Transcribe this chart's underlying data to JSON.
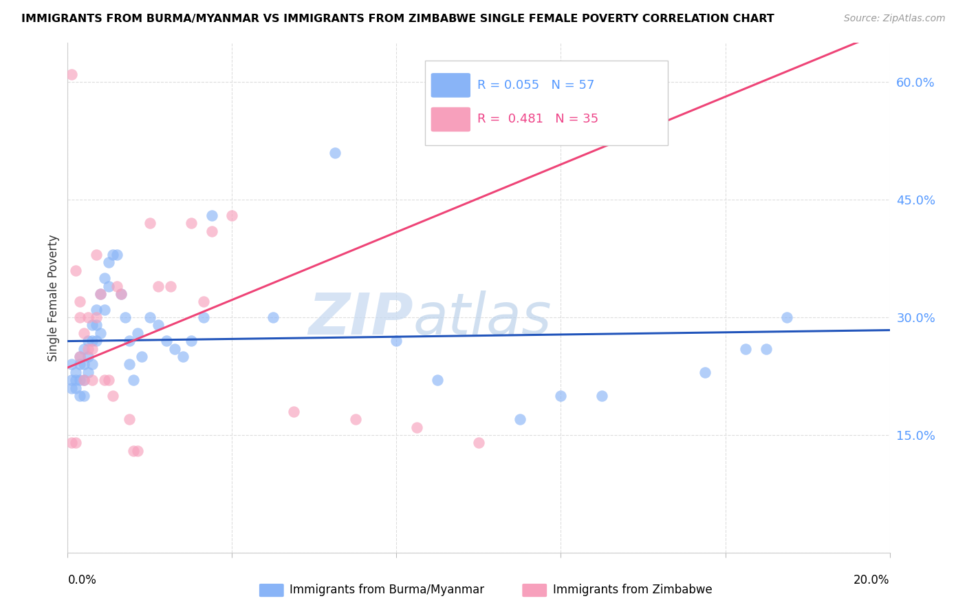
{
  "title": "IMMIGRANTS FROM BURMA/MYANMAR VS IMMIGRANTS FROM ZIMBABWE SINGLE FEMALE POVERTY CORRELATION CHART",
  "source": "Source: ZipAtlas.com",
  "ylabel": "Single Female Poverty",
  "watermark_zip": "ZIP",
  "watermark_atlas": "atlas",
  "xlim": [
    0.0,
    0.2
  ],
  "ylim": [
    0.0,
    0.65
  ],
  "yticks": [
    0.0,
    0.15,
    0.3,
    0.45,
    0.6
  ],
  "ytick_labels": [
    "",
    "15.0%",
    "30.0%",
    "45.0%",
    "60.0%"
  ],
  "blue_color": "#89b4f7",
  "pink_color": "#f7a0bc",
  "blue_line_color": "#2255bb",
  "pink_line_color": "#ee4477",
  "blue_legend_color": "#5599ff",
  "pink_legend_color": "#ee4488",
  "blue_x": [
    0.001,
    0.001,
    0.001,
    0.002,
    0.002,
    0.002,
    0.003,
    0.003,
    0.003,
    0.003,
    0.004,
    0.004,
    0.004,
    0.004,
    0.005,
    0.005,
    0.005,
    0.006,
    0.006,
    0.006,
    0.007,
    0.007,
    0.007,
    0.008,
    0.008,
    0.009,
    0.009,
    0.01,
    0.01,
    0.011,
    0.012,
    0.013,
    0.014,
    0.015,
    0.015,
    0.016,
    0.017,
    0.018,
    0.02,
    0.022,
    0.024,
    0.026,
    0.028,
    0.03,
    0.033,
    0.035,
    0.05,
    0.065,
    0.08,
    0.09,
    0.11,
    0.12,
    0.13,
    0.155,
    0.165,
    0.17,
    0.175
  ],
  "blue_y": [
    0.22,
    0.24,
    0.21,
    0.23,
    0.22,
    0.21,
    0.25,
    0.24,
    0.22,
    0.2,
    0.26,
    0.24,
    0.22,
    0.2,
    0.27,
    0.25,
    0.23,
    0.29,
    0.27,
    0.24,
    0.31,
    0.29,
    0.27,
    0.33,
    0.28,
    0.35,
    0.31,
    0.37,
    0.34,
    0.38,
    0.38,
    0.33,
    0.3,
    0.27,
    0.24,
    0.22,
    0.28,
    0.25,
    0.3,
    0.29,
    0.27,
    0.26,
    0.25,
    0.27,
    0.3,
    0.43,
    0.3,
    0.51,
    0.27,
    0.22,
    0.17,
    0.2,
    0.2,
    0.23,
    0.26,
    0.26,
    0.3
  ],
  "pink_x": [
    0.001,
    0.001,
    0.002,
    0.002,
    0.003,
    0.003,
    0.003,
    0.004,
    0.004,
    0.005,
    0.005,
    0.006,
    0.006,
    0.007,
    0.007,
    0.008,
    0.009,
    0.01,
    0.011,
    0.012,
    0.013,
    0.015,
    0.016,
    0.017,
    0.02,
    0.022,
    0.025,
    0.03,
    0.033,
    0.035,
    0.04,
    0.055,
    0.07,
    0.085,
    0.1
  ],
  "pink_y": [
    0.61,
    0.14,
    0.14,
    0.36,
    0.32,
    0.3,
    0.25,
    0.28,
    0.22,
    0.3,
    0.26,
    0.26,
    0.22,
    0.38,
    0.3,
    0.33,
    0.22,
    0.22,
    0.2,
    0.34,
    0.33,
    0.17,
    0.13,
    0.13,
    0.42,
    0.34,
    0.34,
    0.42,
    0.32,
    0.41,
    0.43,
    0.18,
    0.17,
    0.16,
    0.14
  ]
}
